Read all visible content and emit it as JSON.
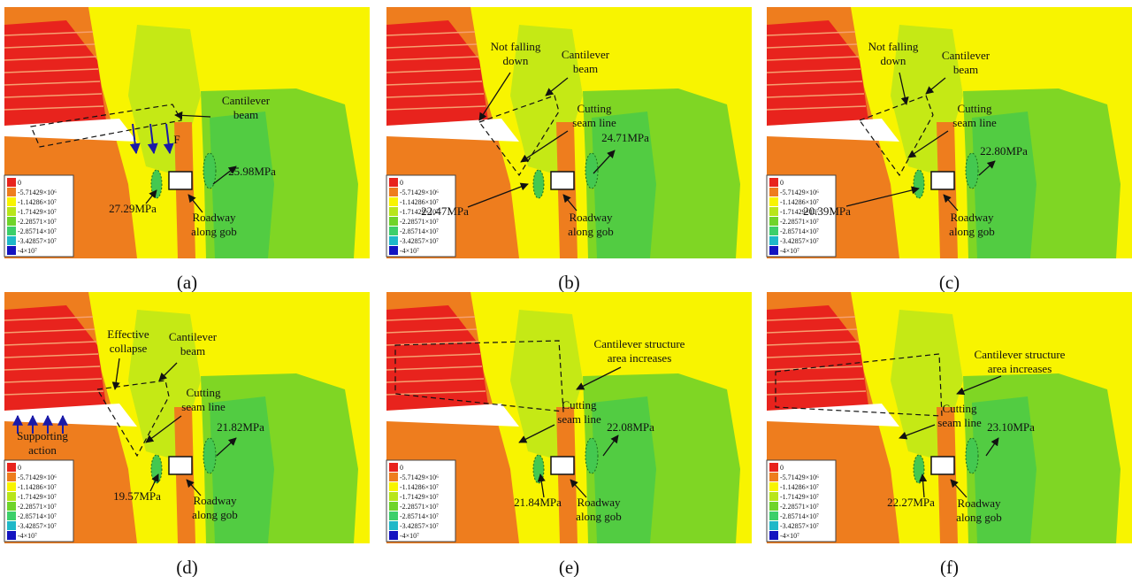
{
  "legend": [
    "0",
    "-5.71429×10⁶",
    "-1.14286×10⁷",
    "-1.71429×10⁷",
    "-2.28571×10⁷",
    "-2.85714×10⁷",
    "-3.42857×10⁷",
    "-4×10⁷"
  ],
  "panels": [
    {
      "label": "(a)",
      "annotations": [
        {
          "lines": [
            "Cantilever",
            "beam"
          ]
        },
        {
          "lines": [
            "F"
          ]
        },
        {
          "lines": [
            "25.98MPa"
          ]
        },
        {
          "lines": [
            "27.29MPa"
          ]
        },
        {
          "lines": [
            "Roadway",
            "along gob"
          ]
        }
      ]
    },
    {
      "label": "(b)",
      "annotations": [
        {
          "lines": [
            "Not falling",
            "down"
          ]
        },
        {
          "lines": [
            "Cantilever",
            "beam"
          ]
        },
        {
          "lines": [
            "Cutting",
            "seam line"
          ]
        },
        {
          "lines": [
            "24.71MPa"
          ]
        },
        {
          "lines": [
            "22.47MPa"
          ]
        },
        {
          "lines": [
            "Roadway",
            "along gob"
          ]
        }
      ]
    },
    {
      "label": "(c)",
      "annotations": [
        {
          "lines": [
            "Not falling",
            "down"
          ]
        },
        {
          "lines": [
            "Cantilever",
            "beam"
          ]
        },
        {
          "lines": [
            "Cutting",
            "seam line"
          ]
        },
        {
          "lines": [
            "22.80MPa"
          ]
        },
        {
          "lines": [
            "20.39MPa"
          ]
        },
        {
          "lines": [
            "Roadway",
            "along gob"
          ]
        }
      ]
    },
    {
      "label": "(d)",
      "annotations": [
        {
          "lines": [
            "Effective",
            "collapse"
          ]
        },
        {
          "lines": [
            "Cantilever",
            "beam"
          ]
        },
        {
          "lines": [
            "Cutting",
            "seam line"
          ]
        },
        {
          "lines": [
            "Supporting",
            "action"
          ]
        },
        {
          "lines": [
            "21.82MPa"
          ]
        },
        {
          "lines": [
            "19.57MPa"
          ]
        },
        {
          "lines": [
            "Roadway",
            "along gob"
          ]
        }
      ]
    },
    {
      "label": "(e)",
      "annotations": [
        {
          "lines": [
            "Cantilever structure",
            "area increases"
          ]
        },
        {
          "lines": [
            "Cutting",
            "seam line"
          ]
        },
        {
          "lines": [
            "22.08MPa"
          ]
        },
        {
          "lines": [
            "21.84MPa"
          ]
        },
        {
          "lines": [
            "Roadway",
            "along gob"
          ]
        }
      ]
    },
    {
      "label": "(f)",
      "annotations": [
        {
          "lines": [
            "Cantilever structure",
            "area increases"
          ]
        },
        {
          "lines": [
            "Cutting",
            "seam line"
          ]
        },
        {
          "lines": [
            "23.10MPa"
          ]
        },
        {
          "lines": [
            "22.27MPa"
          ]
        },
        {
          "lines": [
            "Roadway",
            "along gob"
          ]
        }
      ]
    }
  ]
}
